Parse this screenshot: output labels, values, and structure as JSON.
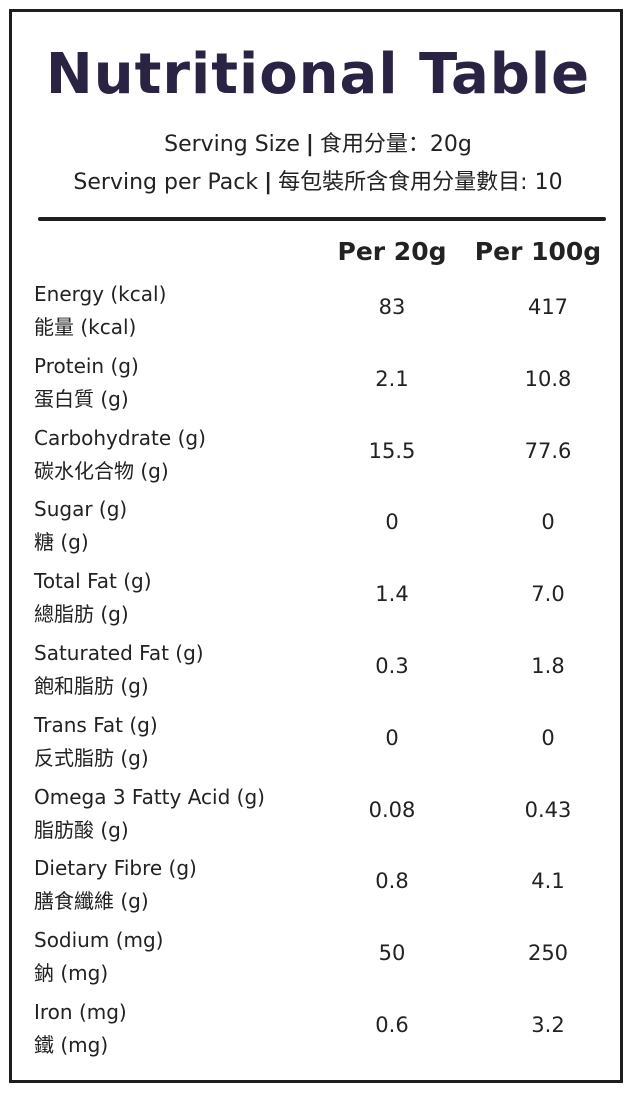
{
  "title": "Nutritional Table",
  "serving": {
    "size_label": "Serving Size",
    "size_label_zh": "食用分量：20g",
    "pack_label": "Serving per Pack",
    "pack_label_zh": "每包裝所含食用分量數目: 10",
    "separator": "|"
  },
  "columns": {
    "per_20g": "Per 20g",
    "per_100g": "Per 100g"
  },
  "rows": [
    {
      "en": "Energy (kcal)",
      "zh": "能量 (kcal)",
      "per20": "83",
      "per100": "417"
    },
    {
      "en": "Protein (g)",
      "zh": "蛋白質 (g)",
      "per20": "2.1",
      "per100": "10.8"
    },
    {
      "en": "Carbohydrate (g)",
      "zh": "碳水化合物 (g)",
      "per20": "15.5",
      "per100": "77.6"
    },
    {
      "en": "Sugar (g)",
      "zh": "糖 (g)",
      "per20": "0",
      "per100": "0"
    },
    {
      "en": "Total Fat (g)",
      "zh": "總脂肪 (g)",
      "per20": "1.4",
      "per100": "7.0"
    },
    {
      "en": "Saturated Fat (g)",
      "zh": "飽和脂肪 (g)",
      "per20": "0.3",
      "per100": "1.8"
    },
    {
      "en": "Trans Fat (g)",
      "zh": "反式脂肪 (g)",
      "per20": "0",
      "per100": "0"
    },
    {
      "en": "Omega 3 Fatty Acid (g)",
      "zh": "脂肪酸 (g)",
      "per20": "0.08",
      "per100": "0.43"
    },
    {
      "en": "Dietary Fibre (g)",
      "zh": "膳食纖維 (g)",
      "per20": "0.8",
      "per100": "4.1"
    },
    {
      "en": "Sodium (mg)",
      "zh": "鈉 (mg)",
      "per20": "50",
      "per100": "250"
    },
    {
      "en": "Iron (mg)",
      "zh": "鐵 (mg)",
      "per20": "0.6",
      "per100": "3.2"
    }
  ]
}
